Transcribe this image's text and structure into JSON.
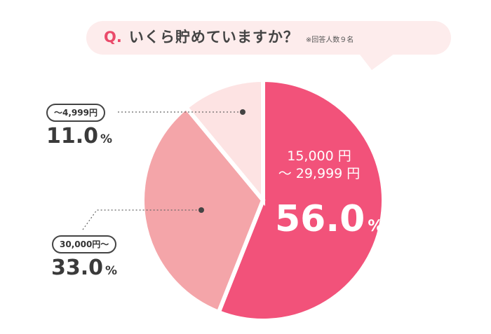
{
  "question": {
    "prefix": "Q.",
    "text": "いくら貯めていますか？",
    "note": "※回答人数９名"
  },
  "chart_data": {
    "type": "pie",
    "title": "いくら貯めていますか？",
    "slices": [
      {
        "label": "15,000 円 〜 29,999 円",
        "label_line1": "15,000 円",
        "label_line2": "〜 29,999 円",
        "value": 56.0,
        "value_text": "56.0",
        "unit": "%",
        "color": "#f2527a"
      },
      {
        "label": "30,000円〜",
        "value": 33.0,
        "value_text": "33.0",
        "unit": "%",
        "color": "#f4a5a9"
      },
      {
        "label": "〜4,999円",
        "value": 11.0,
        "value_text": "11.0",
        "unit": "%",
        "color": "#fde3e3"
      }
    ]
  },
  "colors": {
    "accent": "#ea4a6a",
    "bubble": "#fdecec",
    "text_dark": "#3a3a3a",
    "separator": "#ffffff"
  }
}
